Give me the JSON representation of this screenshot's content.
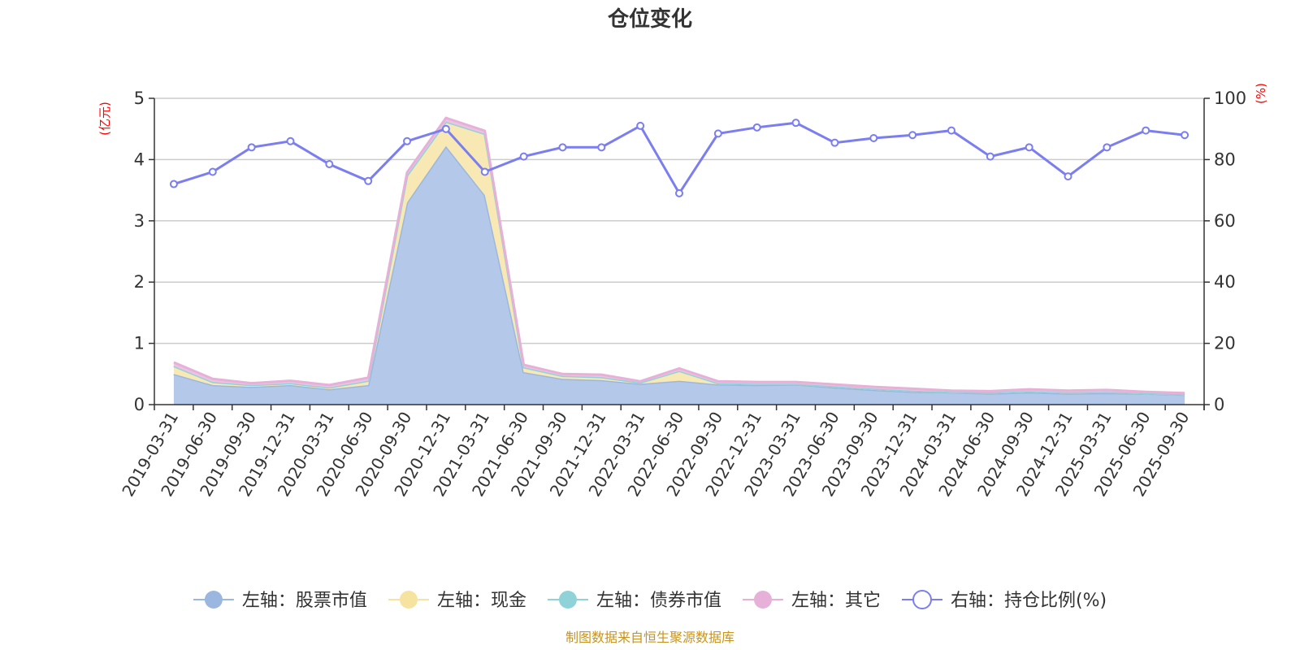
{
  "chart_data": {
    "type": "area",
    "title": "仓位变化",
    "left_axis_unit": "(亿元)",
    "right_axis_unit": "(%)",
    "left_ylim": [
      0,
      5
    ],
    "left_yticks": [
      "0",
      "1",
      "2",
      "3",
      "4",
      "5"
    ],
    "right_ylim": [
      0,
      100
    ],
    "right_yticks": [
      "0",
      "20",
      "40",
      "60",
      "80",
      "100"
    ],
    "grid": true,
    "legend_position": "bottom",
    "categories": [
      "2019-03-31",
      "2019-06-30",
      "2019-09-30",
      "2019-12-31",
      "2020-03-31",
      "2020-06-30",
      "2020-09-30",
      "2020-12-31",
      "2021-03-31",
      "2021-06-30",
      "2021-09-30",
      "2021-12-31",
      "2022-03-31",
      "2022-06-30",
      "2022-09-30",
      "2022-12-31",
      "2023-03-31",
      "2023-06-30",
      "2023-09-30",
      "2023-12-31",
      "2024-03-31",
      "2024-06-30",
      "2024-09-30",
      "2024-12-31",
      "2025-03-31",
      "2025-06-30",
      "2025-09-30"
    ],
    "stacked_series": [
      {
        "name": "左轴：股票市值",
        "axis": "left",
        "color": "#9bb7e0",
        "fill": "#b4c9e9",
        "values": [
          0.5,
          0.32,
          0.29,
          0.32,
          0.25,
          0.32,
          3.3,
          4.22,
          3.42,
          0.53,
          0.42,
          0.4,
          0.34,
          0.39,
          0.33,
          0.32,
          0.33,
          0.28,
          0.24,
          0.21,
          0.2,
          0.18,
          0.2,
          0.18,
          0.19,
          0.18,
          0.16
        ]
      },
      {
        "name": "左轴：现金",
        "axis": "left",
        "color": "#f7e3a0",
        "fill": "#f8e8b3",
        "values": [
          0.13,
          0.05,
          0.03,
          0.03,
          0.03,
          0.07,
          0.44,
          0.4,
          1.0,
          0.08,
          0.05,
          0.05,
          0.02,
          0.16,
          0.02,
          0.02,
          0.01,
          0.02,
          0.02,
          0.02,
          0.01,
          0.02,
          0.02,
          0.02,
          0.02,
          0.01,
          0.01
        ]
      },
      {
        "name": "左轴：债券市值",
        "axis": "left",
        "color": "#8fd3d8",
        "fill": "#a8dde0",
        "values": [
          0,
          0,
          0,
          0,
          0,
          0,
          0,
          0,
          0,
          0,
          0,
          0,
          0,
          0,
          0,
          0,
          0,
          0,
          0,
          0,
          0,
          0,
          0,
          0,
          0,
          0,
          0
        ]
      },
      {
        "name": "左轴：其它",
        "axis": "left",
        "color": "#e6b0d8",
        "fill": "#eec3e2",
        "values": [
          0.06,
          0.05,
          0.03,
          0.04,
          0.04,
          0.05,
          0.05,
          0.06,
          0.05,
          0.04,
          0.03,
          0.04,
          0.02,
          0.04,
          0.03,
          0.03,
          0.03,
          0.03,
          0.03,
          0.03,
          0.02,
          0.02,
          0.03,
          0.03,
          0.03,
          0.02,
          0.02
        ]
      }
    ],
    "line_series": {
      "name": "右轴：持仓比例(%)",
      "axis": "right",
      "color": "#7b7ef0",
      "values": [
        72,
        76,
        84,
        86,
        78.5,
        73,
        86,
        90,
        76,
        81,
        84,
        84,
        91,
        69,
        88.5,
        90.5,
        92,
        85.5,
        87,
        88,
        89.5,
        81,
        84,
        74.5,
        84,
        89.5,
        88
      ]
    },
    "source_note": "制图数据来自恒生聚源数据库"
  }
}
